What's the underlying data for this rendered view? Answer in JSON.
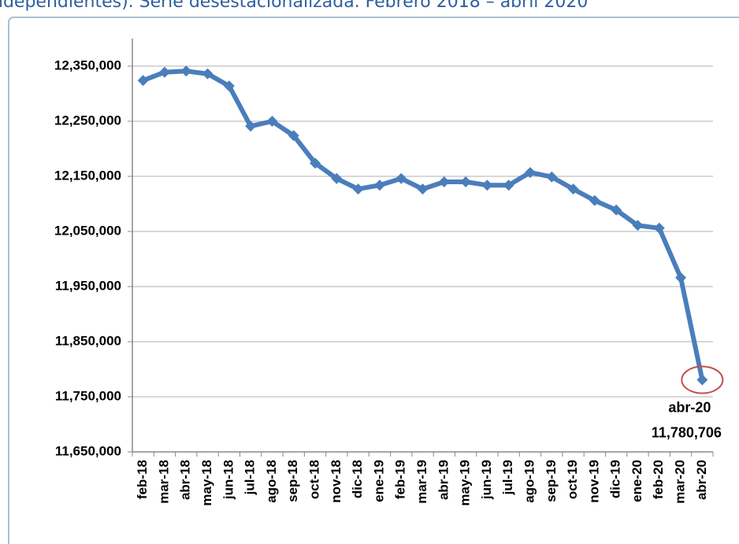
{
  "chart_data": {
    "type": "line",
    "title": "ndependientes). Serie desestacionalizada. Febrero 2018 – abril 2020",
    "categories": [
      "feb-18",
      "mar-18",
      "abr-18",
      "may-18",
      "jun-18",
      "jul-18",
      "ago-18",
      "sep-18",
      "oct-18",
      "nov-18",
      "dic-18",
      "ene-19",
      "feb-19",
      "mar-19",
      "abr-19",
      "may-19",
      "jun-19",
      "jul-19",
      "ago-19",
      "sep-19",
      "oct-19",
      "nov-19",
      "dic-19",
      "ene-20",
      "feb-20",
      "mar-20",
      "abr-20"
    ],
    "values": [
      12324000,
      12339000,
      12341000,
      12336000,
      12314000,
      12241000,
      12250000,
      12224000,
      12174000,
      12146000,
      12127000,
      12134000,
      12146000,
      12127000,
      12140000,
      12140000,
      12134000,
      12134000,
      12157000,
      12149000,
      12127000,
      12106000,
      12089000,
      12061000,
      12056000,
      11966000,
      11780706
    ],
    "value_labels": [
      null,
      null,
      null,
      null,
      null,
      null,
      null,
      null,
      null,
      null,
      null,
      null,
      null,
      null,
      null,
      null,
      null,
      null,
      null,
      null,
      null,
      null,
      null,
      null,
      null,
      null,
      "11,780,706"
    ],
    "color": "#4a7ebb",
    "ylim": [
      11650000,
      12400000
    ],
    "yticks": [
      {
        "value": 11650000,
        "label": "11,650,000"
      },
      {
        "value": 11750000,
        "label": "11,750,000"
      },
      {
        "value": 11850000,
        "label": "11,850,000"
      },
      {
        "value": 11950000,
        "label": "11,950,000"
      },
      {
        "value": 12050000,
        "label": "12,050,000"
      },
      {
        "value": 12150000,
        "label": "12,150,000"
      },
      {
        "value": 12250000,
        "label": "12,250,000"
      },
      {
        "value": 12350000,
        "label": "12,350,000"
      }
    ],
    "grid": true
  }
}
